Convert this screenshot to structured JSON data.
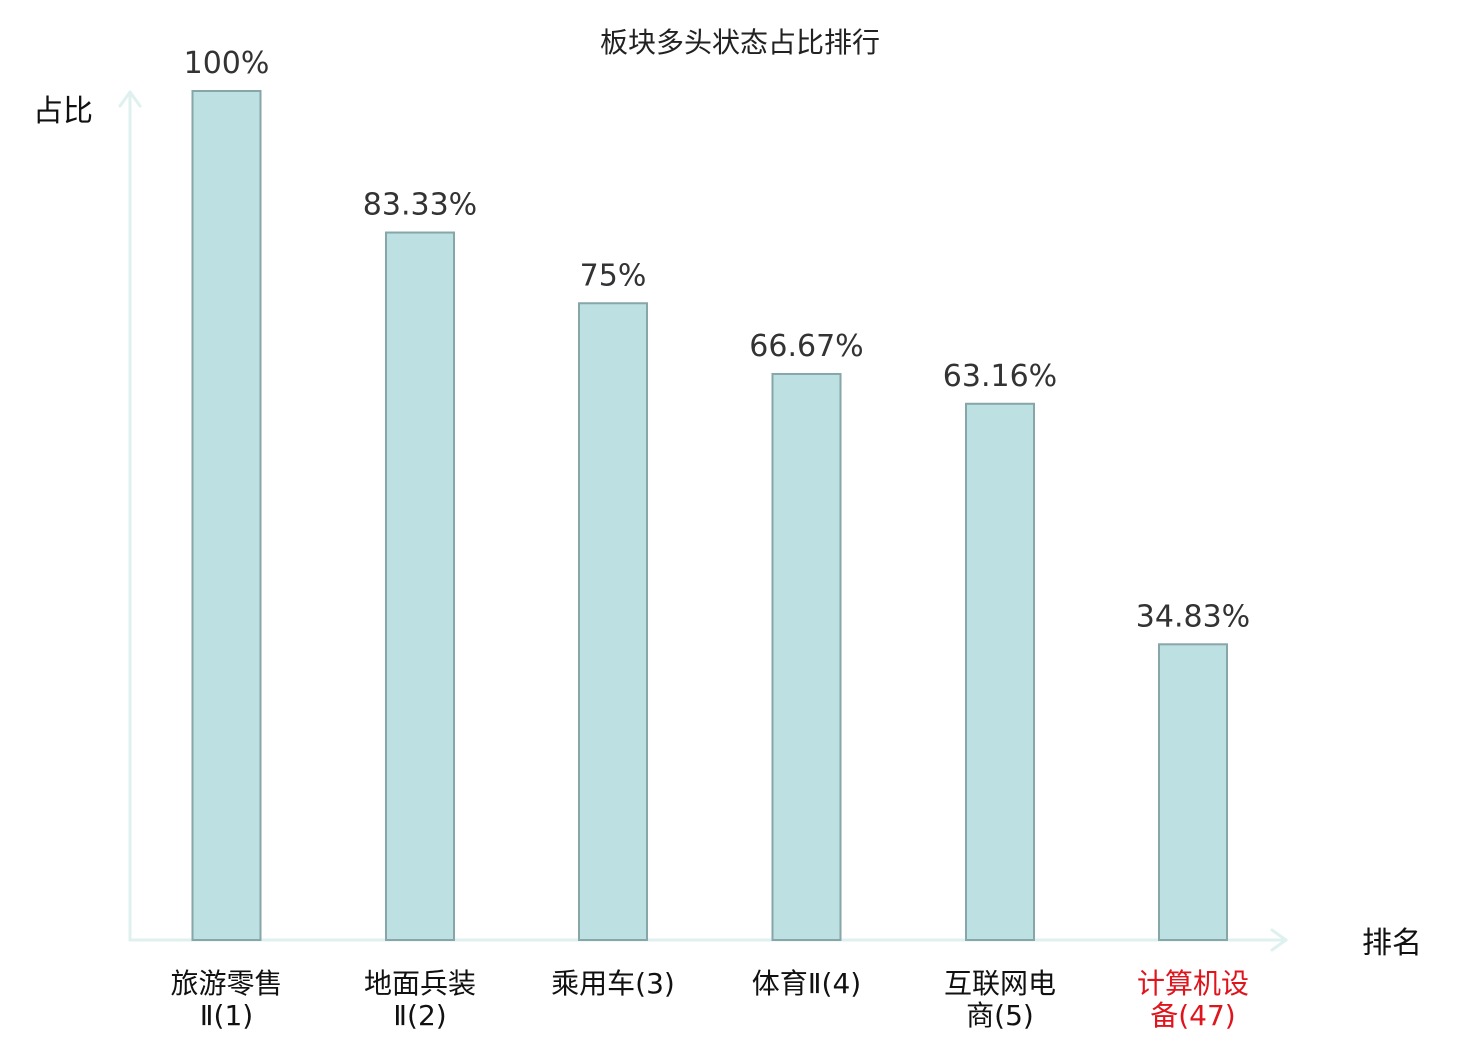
{
  "chart_data": {
    "type": "bar",
    "title": "板块多头状态占比排行",
    "ylabel": "占比",
    "xlabel": "排名",
    "ylim": [
      0,
      100
    ],
    "grid": false,
    "legend": "none",
    "bar_color": "#bde0e2",
    "bar_edge_color": "#86a6a8",
    "axis_color": "#dff1ee",
    "highlight_color": "#e0141c",
    "categories": [
      {
        "lines": [
          "旅游零售",
          "Ⅱ(1)"
        ],
        "highlight": false
      },
      {
        "lines": [
          "地面兵装",
          "Ⅱ(2)"
        ],
        "highlight": false
      },
      {
        "lines": [
          "乘用车(3)"
        ],
        "highlight": false
      },
      {
        "lines": [
          "体育Ⅱ(4)"
        ],
        "highlight": false
      },
      {
        "lines": [
          "互联网电",
          "商(5)"
        ],
        "highlight": false
      },
      {
        "lines": [
          "计算机设",
          "备(47)"
        ],
        "highlight": true
      }
    ],
    "values": [
      100,
      83.33,
      75,
      66.67,
      63.16,
      34.83
    ],
    "value_labels": [
      "100%",
      "83.33%",
      "75%",
      "66.67%",
      "63.16%",
      "34.83%"
    ]
  }
}
